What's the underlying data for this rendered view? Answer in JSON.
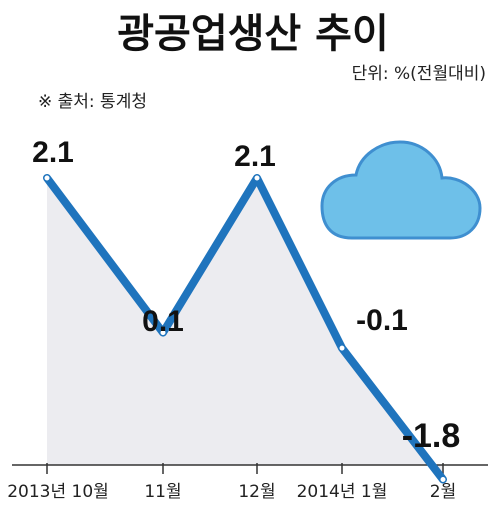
{
  "chart_data": {
    "type": "line",
    "title": "광공업생산 추이",
    "unit_note": "단위: %(전월대비)",
    "source": "※ 출처: 통계청",
    "categories": [
      "2013년 10월",
      "11월",
      "12월",
      "2014년 1월",
      "2월"
    ],
    "values": [
      2.1,
      0.1,
      2.1,
      -0.1,
      -1.8
    ],
    "value_labels": [
      "2.1",
      "0.1",
      "2.1",
      "-0.1",
      "-1.8"
    ],
    "ylim": [
      -2.2,
      2.6
    ],
    "grid": false,
    "legend": "none",
    "colors": {
      "line": "#1f74bd",
      "area": "#ececf0",
      "marker_fill": "#ffffff",
      "cloud_fill": "#6ec0e9",
      "cloud_edge": "#3f8fd0",
      "axis": "#333333"
    },
    "decoration": "cloud-icon"
  }
}
